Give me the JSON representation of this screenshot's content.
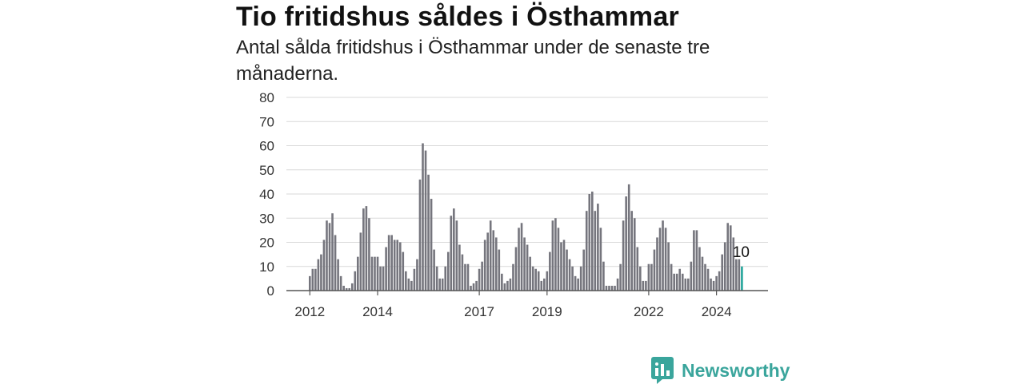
{
  "title": "Tio fritidshus såldes i Östhammar",
  "subtitle": "Antal sålda fritidshus i Östhammar under de senaste tre månaderna.",
  "brand": {
    "name": "Newsworthy",
    "color": "#3aa59c",
    "icon": "newsworthy-logo-icon"
  },
  "chart_data": {
    "type": "bar",
    "title": "",
    "xlabel": "",
    "ylabel": "",
    "ylim": [
      0,
      80
    ],
    "yticks": [
      "0",
      "10",
      "20",
      "30",
      "40",
      "50",
      "60",
      "70",
      "80"
    ],
    "xticks": [
      "2012",
      "2014",
      "2017",
      "2019",
      "2022",
      "2024"
    ],
    "grid": true,
    "colors": {
      "bar": "#75757d",
      "highlight": "#25a59b",
      "grid": "#d8d8d8"
    },
    "highlight_label": "10",
    "values": [
      6,
      9,
      9,
      13,
      15,
      21,
      29,
      28,
      32,
      23,
      13,
      6,
      2,
      1,
      1,
      3,
      8,
      14,
      24,
      34,
      35,
      30,
      14,
      14,
      14,
      10,
      10,
      18,
      23,
      23,
      21,
      21,
      20,
      16,
      8,
      5,
      4,
      9,
      13,
      46,
      61,
      58,
      48,
      38,
      17,
      10,
      5,
      5,
      10,
      16,
      31,
      34,
      29,
      19,
      15,
      11,
      11,
      2,
      3,
      4,
      9,
      12,
      21,
      24,
      29,
      25,
      22,
      17,
      7,
      3,
      4,
      5,
      11,
      18,
      26,
      28,
      22,
      19,
      14,
      10,
      9,
      8,
      4,
      5,
      8,
      16,
      29,
      30,
      26,
      20,
      21,
      17,
      13,
      10,
      6,
      5,
      10,
      17,
      33,
      40,
      41,
      33,
      36,
      26,
      12,
      2,
      2,
      2,
      2,
      5,
      11,
      29,
      39,
      44,
      33,
      30,
      18,
      10,
      4,
      4,
      11,
      11,
      17,
      22,
      26,
      29,
      26,
      20,
      11,
      7,
      7,
      9,
      7,
      5,
      5,
      12,
      25,
      25,
      18,
      14,
      11,
      9,
      5,
      4,
      6,
      8,
      15,
      20,
      28,
      27,
      22,
      13,
      13,
      10
    ]
  }
}
